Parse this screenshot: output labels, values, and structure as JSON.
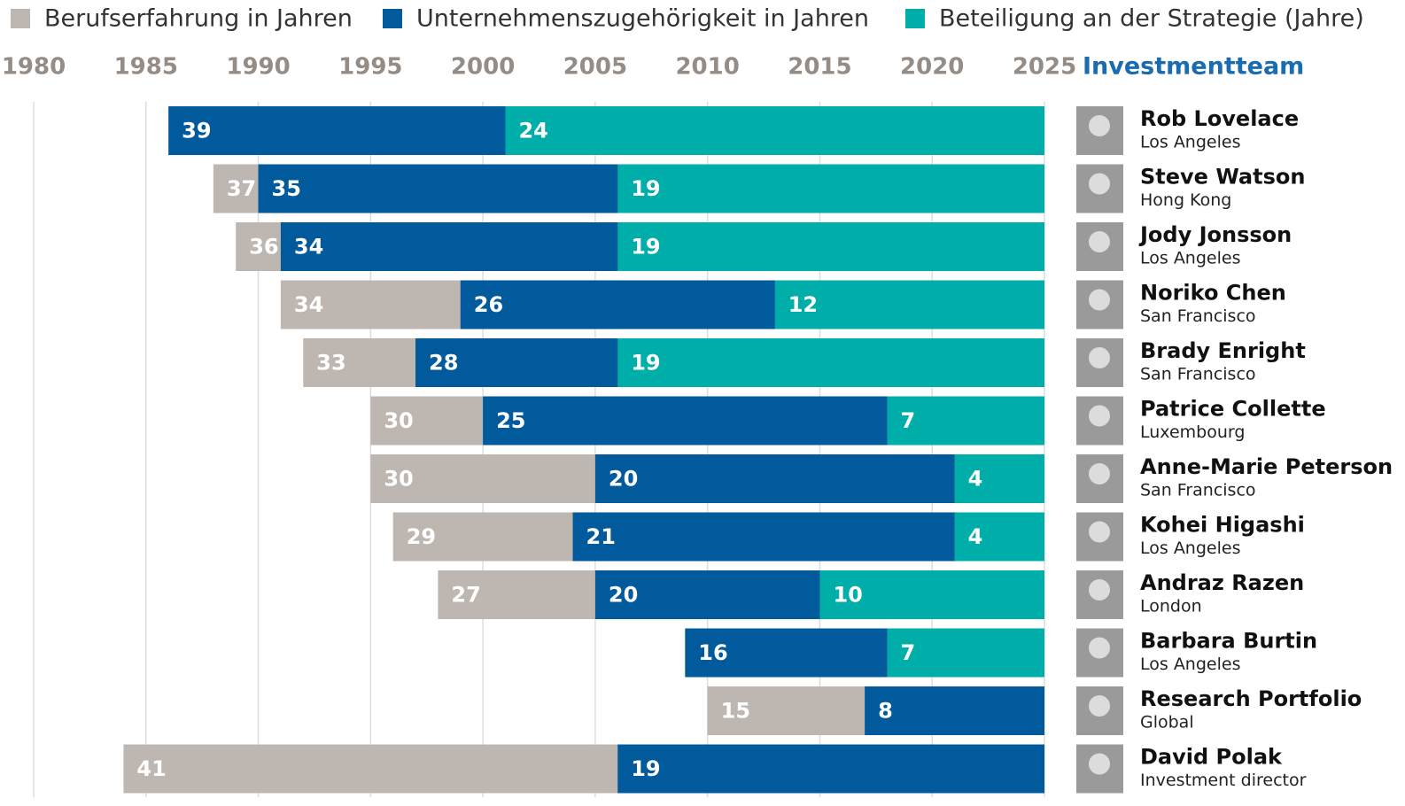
{
  "chart_data": {
    "type": "bar",
    "orientation": "horizontal",
    "header": "Investmentteam",
    "categories": [
      "Rob Lovelace",
      "Steve Watson",
      "Jody Jonsson",
      "Noriko Chen",
      "Brady Enright",
      "Patrice Collette",
      "Anne-Marie Peterson",
      "Kohei Higashi",
      "Andraz Razen",
      "Barbara Burtin",
      "Research Portfolio",
      "David Polak"
    ],
    "locations": [
      "Los Angeles",
      "Hong Kong",
      "Los Angeles",
      "San Francisco",
      "San Francisco",
      "Luxembourg",
      "San Francisco",
      "Los Angeles",
      "London",
      "Los Angeles",
      "Global",
      "Investment director"
    ],
    "series": [
      {
        "name": "Berufserfahrung in Jahren",
        "color": "#beb6b1",
        "values": [
          null,
          37,
          36,
          34,
          33,
          30,
          30,
          29,
          27,
          null,
          15,
          41
        ]
      },
      {
        "name": "Unternehmenszugehörigkeit in Jahren",
        "color": "#005a9c",
        "values": [
          39,
          35,
          34,
          26,
          28,
          25,
          20,
          21,
          20,
          16,
          8,
          19
        ]
      },
      {
        "name": "Beteiligung an der Strategie (Jahre)",
        "color": "#00aea9",
        "values": [
          24,
          19,
          19,
          12,
          19,
          7,
          4,
          4,
          10,
          7,
          null,
          null
        ]
      }
    ],
    "xlim": [
      1980,
      2025
    ],
    "xticks": [
      1980,
      1985,
      1990,
      1995,
      2000,
      2005,
      2010,
      2015,
      2020,
      2025
    ],
    "grid": true
  }
}
